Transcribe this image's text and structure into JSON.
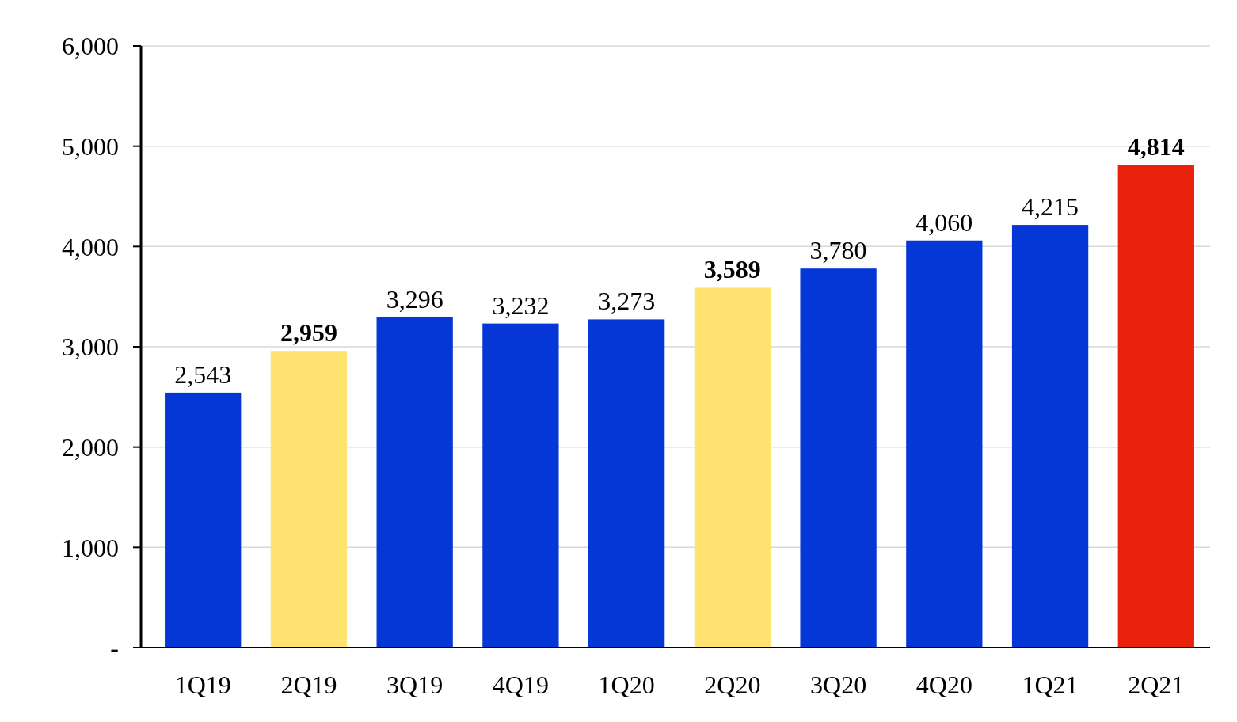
{
  "chart_data": {
    "type": "bar",
    "categories": [
      "1Q19",
      "2Q19",
      "3Q19",
      "4Q19",
      "1Q20",
      "2Q20",
      "3Q20",
      "4Q20",
      "1Q21",
      "2Q21"
    ],
    "values": [
      2543,
      2959,
      3296,
      3232,
      3273,
      3589,
      3780,
      4060,
      4215,
      4814
    ],
    "colors": [
      "#0536d6",
      "#ffe270",
      "#0536d6",
      "#0536d6",
      "#0536d6",
      "#ffe270",
      "#0536d6",
      "#0536d6",
      "#0536d6",
      "#e8200c"
    ],
    "value_labels": [
      "2,543",
      "2,959",
      "3,296",
      "3,232",
      "3,273",
      "3,589",
      "3,780",
      "4,060",
      "4,215",
      "4,814"
    ],
    "ylim": [
      0,
      6000
    ],
    "yticks": [
      {
        "value": 0,
        "label": "-"
      },
      {
        "value": 1000,
        "label": "1,000"
      },
      {
        "value": 2000,
        "label": "2,000"
      },
      {
        "value": 3000,
        "label": "3,000"
      },
      {
        "value": 4000,
        "label": "4,000"
      },
      {
        "value": 5000,
        "label": "5,000"
      },
      {
        "value": 6000,
        "label": "6,000"
      }
    ],
    "grid": "y"
  }
}
